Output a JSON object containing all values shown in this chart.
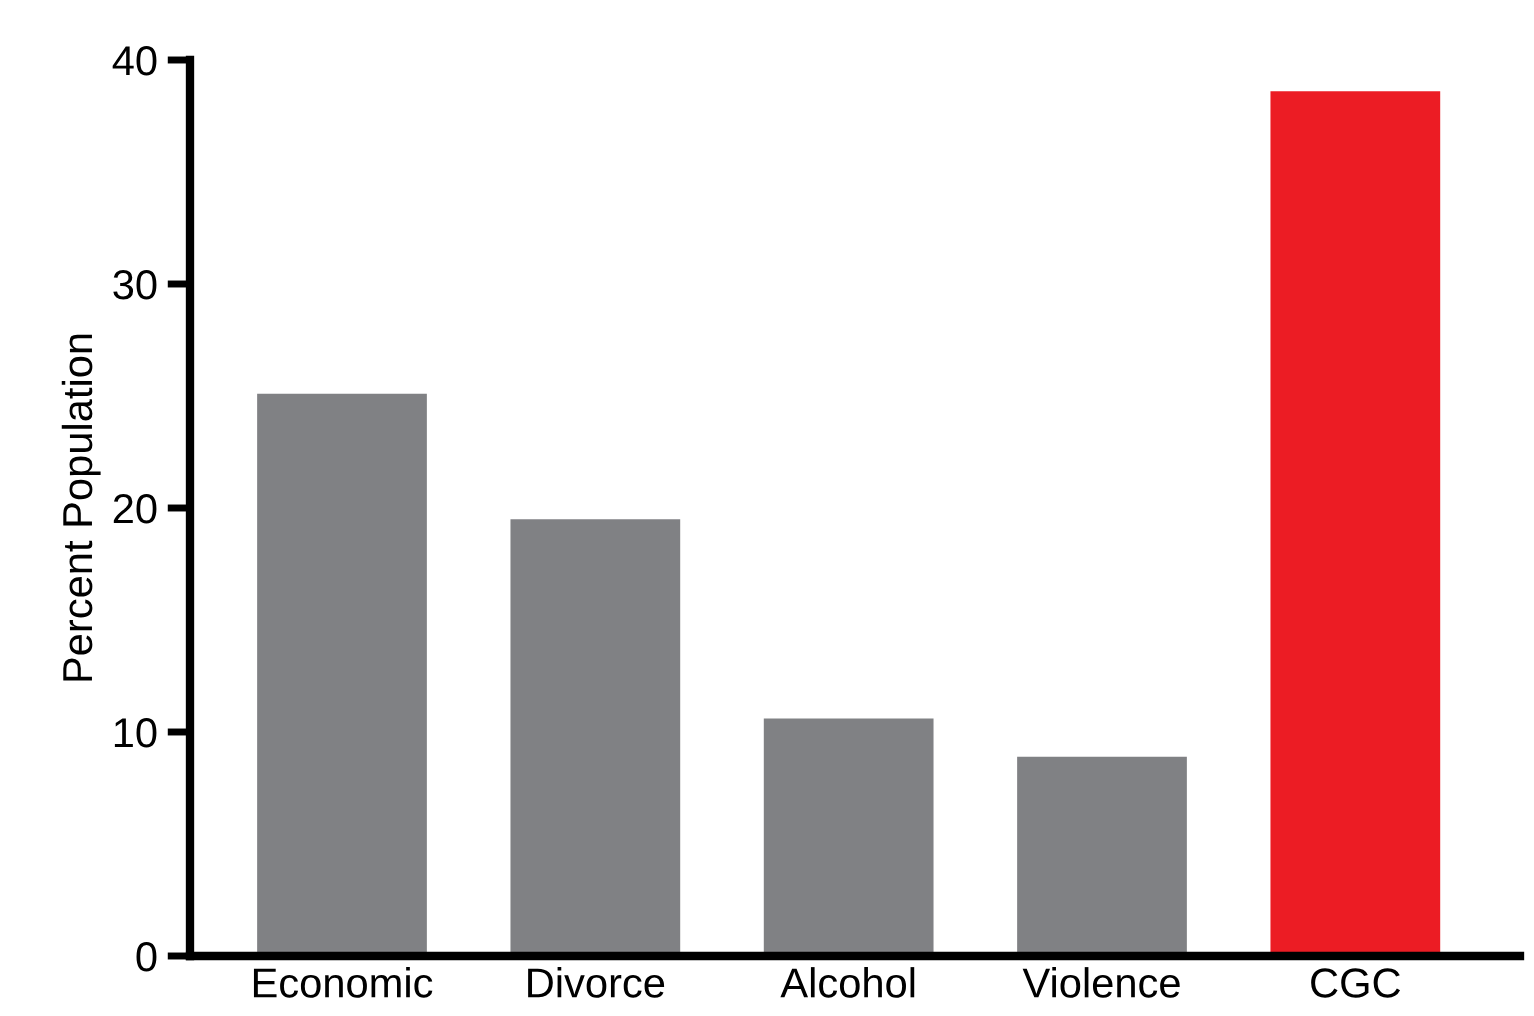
{
  "chart_data": {
    "type": "bar",
    "ylabel": "Percent Population",
    "categories": [
      "Economic",
      "Divorce",
      "Alcohol",
      "Violence",
      "CGC"
    ],
    "values": [
      25.1,
      19.5,
      10.6,
      8.9,
      38.6
    ],
    "colors": [
      "#808184",
      "#808184",
      "#808184",
      "#808184",
      "#ec1c24"
    ],
    "ylim": [
      0,
      40
    ],
    "yticks": [
      0,
      10,
      20,
      30,
      40
    ],
    "grid": false
  }
}
